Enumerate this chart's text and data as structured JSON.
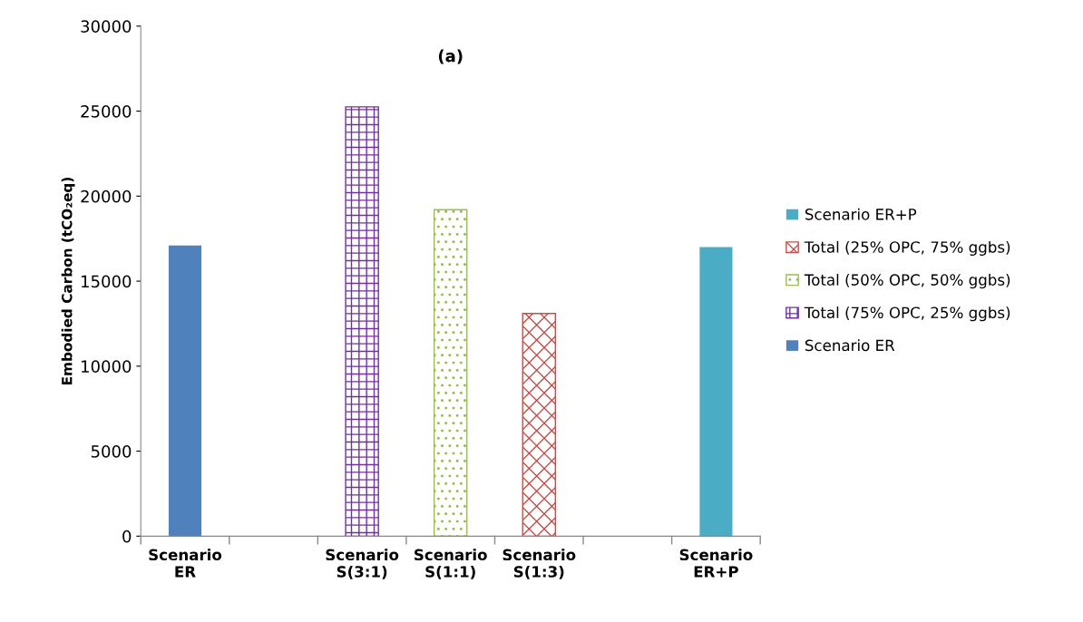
{
  "chart_data": {
    "type": "bar",
    "title": "(a)",
    "ylabel": "Embodied Carbon (tCO₂eq)",
    "categories": [
      "Scenario\nER",
      null,
      "Scenario\nS(3:1)",
      "Scenario\nS(1:1)",
      "Scenario\nS(1:3)",
      null,
      "Scenario\nER+P"
    ],
    "series": [
      {
        "name": "Scenario ER",
        "color": "#4f81bd",
        "values": [
          17100,
          null,
          null,
          null,
          null,
          null,
          null
        ]
      },
      {
        "name": "Total (75% OPC, 25% ggbs)",
        "color": "#7030a0",
        "values": [
          null,
          null,
          25250,
          null,
          null,
          null,
          null
        ]
      },
      {
        "name": "Total (50% OPC, 50% ggbs)",
        "color": "#9bbb59",
        "values": [
          null,
          null,
          null,
          19200,
          null,
          null,
          null
        ]
      },
      {
        "name": "Total (25% OPC, 75% ggbs)",
        "color": "#c0504d",
        "values": [
          null,
          null,
          null,
          null,
          13100,
          null,
          null
        ]
      },
      {
        "name": "Scenario ER+P",
        "color": "#4bacc6",
        "values": [
          null,
          null,
          null,
          null,
          null,
          null,
          17000
        ]
      }
    ],
    "ylim": [
      0,
      30000
    ],
    "yticks": [
      0,
      5000,
      10000,
      15000,
      20000,
      25000,
      30000
    ],
    "grid": false,
    "legend": "right"
  }
}
